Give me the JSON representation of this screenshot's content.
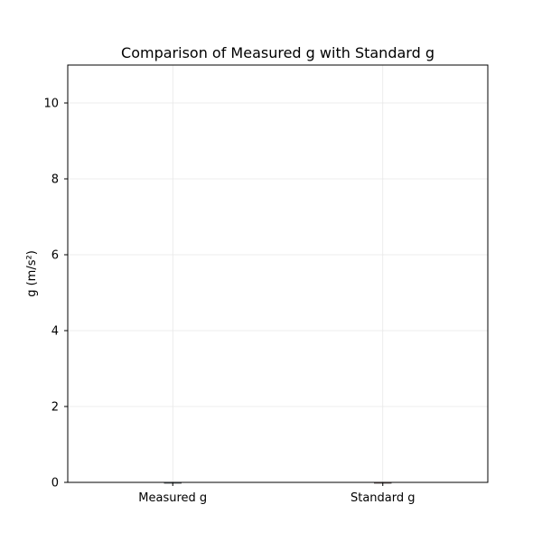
{
  "chart_data": {
    "type": "bar",
    "title": "Comparison of Measured g with Standard g",
    "xlabel": "",
    "ylabel": "g (m/s²)",
    "categories": [
      "Measured g",
      "Standard g"
    ],
    "values": [
      0,
      0
    ],
    "ylim": [
      0,
      11
    ],
    "yticks": [
      0,
      2,
      4,
      6,
      8,
      10
    ],
    "grid": true,
    "colors": [
      "#87ceeb",
      "#f08080"
    ]
  }
}
